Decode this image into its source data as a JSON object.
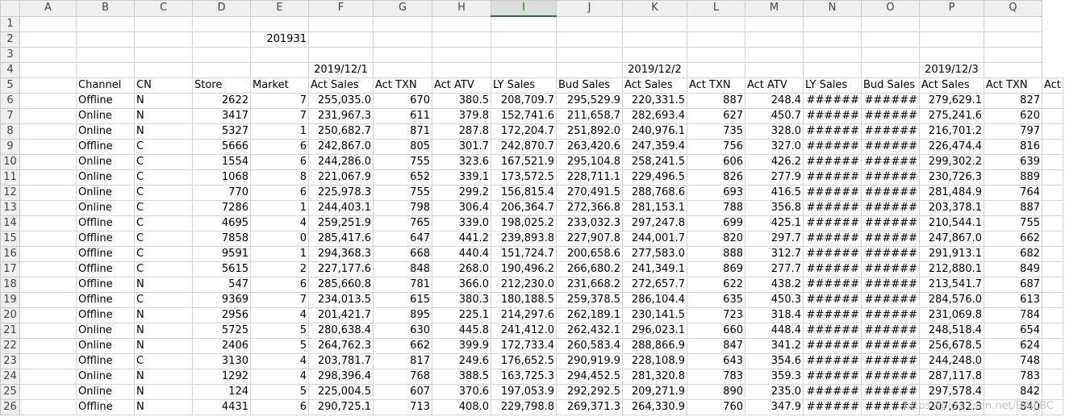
{
  "columns": [
    "A",
    "B",
    "C",
    "D",
    "E",
    "F",
    "G",
    "H",
    "I",
    "J",
    "K",
    "L",
    "M",
    "N",
    "O",
    "P",
    "Q"
  ],
  "selected_column": "I",
  "row_numbers": [
    1,
    2,
    3,
    4,
    5,
    6,
    7,
    8,
    9,
    10,
    11,
    12,
    13,
    14,
    15,
    16,
    17,
    18,
    19,
    20,
    21,
    22,
    23,
    24,
    25,
    26
  ],
  "row2": {
    "E": "201931"
  },
  "row4": {
    "F": "2019/12/1",
    "K": "2019/12/2",
    "P": "2019/12/3"
  },
  "headers": [
    "Channel",
    "CN",
    "Store",
    "Market",
    "Act Sales",
    "Act TXN",
    "Act ATV",
    "LY Sales",
    "Bud Sales",
    "Act Sales",
    "Act TXN",
    "Act ATV",
    "LY Sales",
    "Bud Sales",
    "Act Sales",
    "Act TXN",
    "Act"
  ],
  "rows": [
    [
      "Offline",
      "N",
      "2622",
      "7",
      "255,035.0",
      "670",
      "380.5",
      "208,709.7",
      "295,529.9",
      "220,331.5",
      "887",
      "248.4",
      "######",
      "######",
      "279,629.1",
      "827"
    ],
    [
      "Online",
      "N",
      "3417",
      "7",
      "231,967.3",
      "611",
      "379.8",
      "152,741.6",
      "211,658.7",
      "282,693.4",
      "627",
      "450.7",
      "######",
      "######",
      "275,241.6",
      "620"
    ],
    [
      "Online",
      "N",
      "5327",
      "1",
      "250,682.7",
      "871",
      "287.8",
      "172,204.7",
      "251,892.0",
      "240,976.1",
      "735",
      "328.0",
      "######",
      "######",
      "216,701.2",
      "797"
    ],
    [
      "Offline",
      "C",
      "5666",
      "6",
      "242,867.0",
      "805",
      "301.7",
      "242,870.7",
      "263,420.6",
      "247,359.4",
      "756",
      "327.0",
      "######",
      "######",
      "226,474.4",
      "816"
    ],
    [
      "Online",
      "C",
      "1554",
      "6",
      "244,286.0",
      "755",
      "323.6",
      "167,521.9",
      "295,104.8",
      "258,241.5",
      "606",
      "426.2",
      "######",
      "######",
      "299,302.2",
      "639"
    ],
    [
      "Online",
      "C",
      "1068",
      "8",
      "221,067.9",
      "652",
      "339.1",
      "173,572.5",
      "228,711.1",
      "229,496.5",
      "826",
      "277.9",
      "######",
      "######",
      "230,726.3",
      "889"
    ],
    [
      "Online",
      "C",
      "770",
      "6",
      "225,978.3",
      "755",
      "299.2",
      "156,815.4",
      "270,491.5",
      "288,768.6",
      "693",
      "416.5",
      "######",
      "######",
      "281,484.9",
      "764"
    ],
    [
      "Online",
      "C",
      "7286",
      "1",
      "244,403.1",
      "798",
      "306.4",
      "206,364.7",
      "272,366.8",
      "281,153.1",
      "788",
      "356.8",
      "######",
      "######",
      "203,378.1",
      "887"
    ],
    [
      "Offline",
      "C",
      "4695",
      "4",
      "259,251.9",
      "765",
      "339.0",
      "198,025.2",
      "233,032.3",
      "297,247.8",
      "699",
      "425.1",
      "######",
      "######",
      "210,544.1",
      "755"
    ],
    [
      "Offline",
      "C",
      "7858",
      "0",
      "285,417.6",
      "647",
      "441.2",
      "239,893.8",
      "227,907.8",
      "244,001.7",
      "820",
      "297.7",
      "######",
      "######",
      "247,867.0",
      "662"
    ],
    [
      "Offline",
      "C",
      "9591",
      "1",
      "294,368.3",
      "668",
      "440.4",
      "151,724.7",
      "200,658.6",
      "277,583.0",
      "888",
      "312.7",
      "######",
      "######",
      "291,913.1",
      "682"
    ],
    [
      "Offline",
      "C",
      "5615",
      "2",
      "227,177.6",
      "848",
      "268.0",
      "190,496.2",
      "266,680.2",
      "241,349.1",
      "869",
      "277.7",
      "######",
      "######",
      "212,880.1",
      "849"
    ],
    [
      "Offline",
      "N",
      "547",
      "6",
      "285,660.8",
      "781",
      "366.0",
      "212,230.0",
      "231,668.2",
      "272,657.7",
      "622",
      "438.2",
      "######",
      "######",
      "213,541.7",
      "687"
    ],
    [
      "Offline",
      "C",
      "9369",
      "7",
      "234,013.5",
      "615",
      "380.3",
      "180,188.5",
      "259,378.5",
      "286,104.4",
      "635",
      "450.3",
      "######",
      "######",
      "284,576.0",
      "613"
    ],
    [
      "Offline",
      "N",
      "2956",
      "4",
      "201,421.7",
      "895",
      "225.1",
      "214,297.6",
      "262,189.1",
      "230,141.5",
      "723",
      "318.4",
      "######",
      "######",
      "231,069.8",
      "784"
    ],
    [
      "Online",
      "N",
      "5725",
      "5",
      "280,638.4",
      "630",
      "445.8",
      "241,412.0",
      "262,432.1",
      "296,023.1",
      "660",
      "448.4",
      "######",
      "######",
      "248,518.4",
      "654"
    ],
    [
      "Online",
      "N",
      "2406",
      "5",
      "264,762.3",
      "662",
      "399.9",
      "172,733.4",
      "260,583.4",
      "288,866.9",
      "847",
      "341.2",
      "######",
      "######",
      "256,678.5",
      "624"
    ],
    [
      "Offline",
      "C",
      "3130",
      "4",
      "203,781.7",
      "817",
      "249.6",
      "176,652.5",
      "290,919.9",
      "228,108.9",
      "643",
      "354.6",
      "######",
      "######",
      "244,248.0",
      "748"
    ],
    [
      "Online",
      "N",
      "1292",
      "4",
      "298,396.4",
      "768",
      "388.5",
      "163,725.3",
      "294,452.5",
      "281,320.8",
      "783",
      "359.3",
      "######",
      "######",
      "287,117.8",
      "783"
    ],
    [
      "Online",
      "N",
      "124",
      "5",
      "225,004.5",
      "607",
      "370.6",
      "197,053.9",
      "292,292.5",
      "209,271.9",
      "890",
      "235.0",
      "######",
      "######",
      "297,578.4",
      "842"
    ],
    [
      "Offline",
      "N",
      "4431",
      "6",
      "290,725.1",
      "713",
      "408.0",
      "229,798.8",
      "269,371.3",
      "264,330.9",
      "760",
      "347.9",
      "######",
      "######",
      "207,632.3",
      "840"
    ]
  ],
  "watermark": "https://blog.csdn.net/BAIJIBC"
}
